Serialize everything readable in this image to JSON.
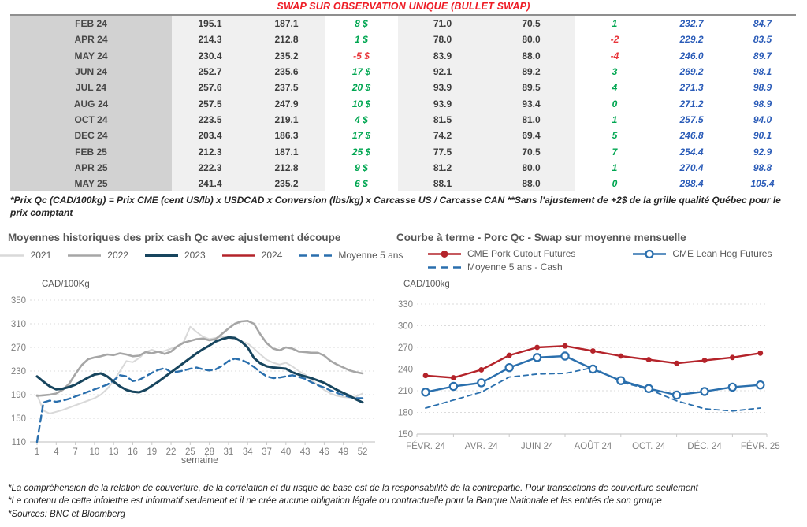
{
  "table": {
    "title": "SWAP SUR OBSERVATION UNIQUE (BULLET SWAP)",
    "rows": [
      [
        "FEB 24",
        "195.1",
        "187.1",
        "8 $",
        "71.0",
        "70.5",
        "1",
        "232.7",
        "84.7"
      ],
      [
        "APR 24",
        "214.3",
        "212.8",
        "1 $",
        "78.0",
        "80.0",
        "-2",
        "229.2",
        "83.5"
      ],
      [
        "MAY 24",
        "230.4",
        "235.2",
        "-5 $",
        "83.9",
        "88.0",
        "-4",
        "246.0",
        "89.7"
      ],
      [
        "JUN 24",
        "252.7",
        "235.6",
        "17 $",
        "92.1",
        "89.2",
        "3",
        "269.2",
        "98.1"
      ],
      [
        "JUL 24",
        "257.6",
        "237.5",
        "20 $",
        "93.9",
        "89.5",
        "4",
        "271.3",
        "98.9"
      ],
      [
        "AUG 24",
        "257.5",
        "247.9",
        "10 $",
        "93.9",
        "93.4",
        "0",
        "271.2",
        "98.9"
      ],
      [
        "OCT 24",
        "223.5",
        "219.1",
        "4 $",
        "81.5",
        "81.0",
        "1",
        "257.5",
        "94.0"
      ],
      [
        "DEC 24",
        "203.4",
        "186.3",
        "17 $",
        "74.2",
        "69.4",
        "5",
        "246.8",
        "90.1"
      ],
      [
        "FEB 25",
        "212.3",
        "187.1",
        "25 $",
        "77.5",
        "70.5",
        "7",
        "254.4",
        "92.9"
      ],
      [
        "APR 25",
        "222.3",
        "212.8",
        "9 $",
        "81.2",
        "80.0",
        "1",
        "270.4",
        "98.8"
      ],
      [
        "MAY 25",
        "241.4",
        "235.2",
        "6 $",
        "88.1",
        "88.0",
        "0",
        "288.4",
        "105.4"
      ]
    ],
    "footnote": "*Prix Qc (CAD/100kg) = Prix CME (cent US/lb) x USDCAD x Conversion (lbs/kg) x Carcasse US / Carcasse CAN **Sans l'ajustement de +2$ de la grille qualité Québec pour le prix comptant",
    "colors": {
      "positive": "#00a651",
      "negative": "#e8353a",
      "blue": "#2b5cb8",
      "title_red": "#ee1c25"
    }
  },
  "chart_data": [
    {
      "type": "line",
      "title": "Moyennes historiques des prix cash Qc avec ajustement découpe",
      "y_unit": "CAD/100Kg",
      "xlabel": "semaine",
      "ylim": [
        110,
        350
      ],
      "yticks": [
        110,
        150,
        190,
        230,
        270,
        310,
        350
      ],
      "xticks": [
        1,
        4,
        7,
        10,
        13,
        16,
        19,
        22,
        25,
        28,
        31,
        34,
        37,
        40,
        43,
        46,
        49,
        52
      ],
      "x": [
        1,
        2,
        3,
        4,
        5,
        6,
        7,
        8,
        9,
        10,
        11,
        12,
        13,
        14,
        15,
        16,
        17,
        18,
        19,
        20,
        21,
        22,
        23,
        24,
        25,
        26,
        27,
        28,
        29,
        30,
        31,
        32,
        33,
        34,
        35,
        36,
        37,
        38,
        39,
        40,
        41,
        42,
        43,
        44,
        45,
        46,
        47,
        48,
        49,
        50,
        51,
        52
      ],
      "grid": "dashed-horizontal",
      "legend_position": "top",
      "series": [
        {
          "name": "2021",
          "color": "#d9d9d9",
          "dash": "solid",
          "width": 2,
          "values": [
            190,
            163,
            158,
            161,
            164,
            168,
            172,
            176,
            180,
            184,
            190,
            200,
            213,
            230,
            247,
            245,
            252,
            262,
            266,
            262,
            264,
            268,
            272,
            280,
            305,
            296,
            288,
            284,
            286,
            288,
            286,
            284,
            280,
            277,
            268,
            258,
            249,
            244,
            241,
            244,
            238,
            230,
            224,
            215,
            206,
            198,
            192,
            188,
            186,
            185,
            187,
            192
          ]
        },
        {
          "name": "2022",
          "color": "#a6a6a6",
          "dash": "solid",
          "width": 2.6,
          "values": [
            188,
            189,
            190,
            192,
            198,
            208,
            225,
            240,
            250,
            253,
            255,
            258,
            257,
            260,
            258,
            255,
            256,
            262,
            260,
            263,
            259,
            263,
            272,
            278,
            281,
            284,
            285,
            282,
            284,
            293,
            302,
            310,
            314,
            315,
            310,
            292,
            277,
            268,
            265,
            270,
            268,
            263,
            262,
            261,
            261,
            256,
            247,
            241,
            236,
            231,
            228,
            226
          ]
        },
        {
          "name": "2023",
          "color": "#17455e",
          "dash": "solid",
          "width": 3,
          "values": [
            221,
            212,
            204,
            199,
            200,
            203,
            207,
            213,
            219,
            224,
            226,
            221,
            212,
            204,
            198,
            195,
            194,
            198,
            205,
            212,
            220,
            228,
            236,
            244,
            252,
            260,
            267,
            273,
            280,
            284,
            287,
            286,
            280,
            270,
            252,
            243,
            238,
            236,
            235,
            234,
            228,
            224,
            221,
            218,
            214,
            210,
            204,
            198,
            193,
            188,
            182,
            177
          ]
        },
        {
          "name": "2024",
          "color": "#b4232a",
          "dash": "solid",
          "width": 2.6,
          "values": []
        },
        {
          "name": "Moyenne 5 ans",
          "color": "#2a6fad",
          "dash": "dashed",
          "width": 2.4,
          "values": [
            110,
            177,
            180,
            178,
            180,
            183,
            187,
            191,
            195,
            199,
            203,
            207,
            214,
            223,
            221,
            213,
            215,
            221,
            227,
            232,
            235,
            228,
            229,
            231,
            234,
            236,
            233,
            231,
            233,
            239,
            247,
            251,
            249,
            244,
            237,
            228,
            221,
            218,
            219,
            221,
            223,
            220,
            217,
            211,
            206,
            202,
            197,
            193,
            189,
            186,
            184,
            184
          ]
        }
      ]
    },
    {
      "type": "line",
      "title": "Courbe à terme - Porc Qc - Swap sur moyenne mensuelle",
      "y_unit": "CAD/100kg",
      "ylim": [
        150,
        330
      ],
      "yticks": [
        150,
        180,
        210,
        240,
        270,
        300,
        330
      ],
      "x_labels": [
        "FÉVR. 24",
        "AVR. 24",
        "JUIN 24",
        "AOÛT 24",
        "OCT. 24",
        "DÉC. 24",
        "FÉVR. 25"
      ],
      "x_label_indices": [
        0,
        2,
        4,
        6,
        8,
        10,
        12
      ],
      "grid": "dashed-horizontal",
      "legend_position": "top",
      "series": [
        {
          "name": "CME Pork Cutout Futures",
          "color": "#b4232a",
          "dash": "solid",
          "width": 2.4,
          "marker": "filled-circle",
          "values": [
            231,
            228,
            239,
            259,
            270,
            272,
            265,
            258,
            253,
            248,
            252,
            256,
            262
          ]
        },
        {
          "name": "CME Lean Hog Futures",
          "color": "#2a6fad",
          "dash": "solid",
          "width": 2.4,
          "marker": "open-circle",
          "values": [
            208,
            216,
            221,
            242,
            256,
            258,
            240,
            224,
            213,
            204,
            209,
            215,
            218
          ]
        },
        {
          "name": "Moyenne 5 ans - Cash",
          "color": "#2a6fad",
          "dash": "dashed",
          "width": 1.8,
          "marker": "none",
          "values": [
            186,
            197,
            208,
            229,
            233,
            234,
            242,
            222,
            212,
            196,
            185,
            182,
            186
          ]
        }
      ]
    }
  ],
  "footer": {
    "lines": [
      "*La compréhension de la relation de couverture, de la corrélation et du risque de base est de la responsabilité de la contrepartie. Pour transactions de couverture seulement",
      "*Le contenu de cette infolettre est informatif seulement et il ne crée aucune obligation légale ou contractuelle pour la Banque Nationale et les entités de son groupe",
      "*Sources: BNC et Bloomberg"
    ]
  }
}
